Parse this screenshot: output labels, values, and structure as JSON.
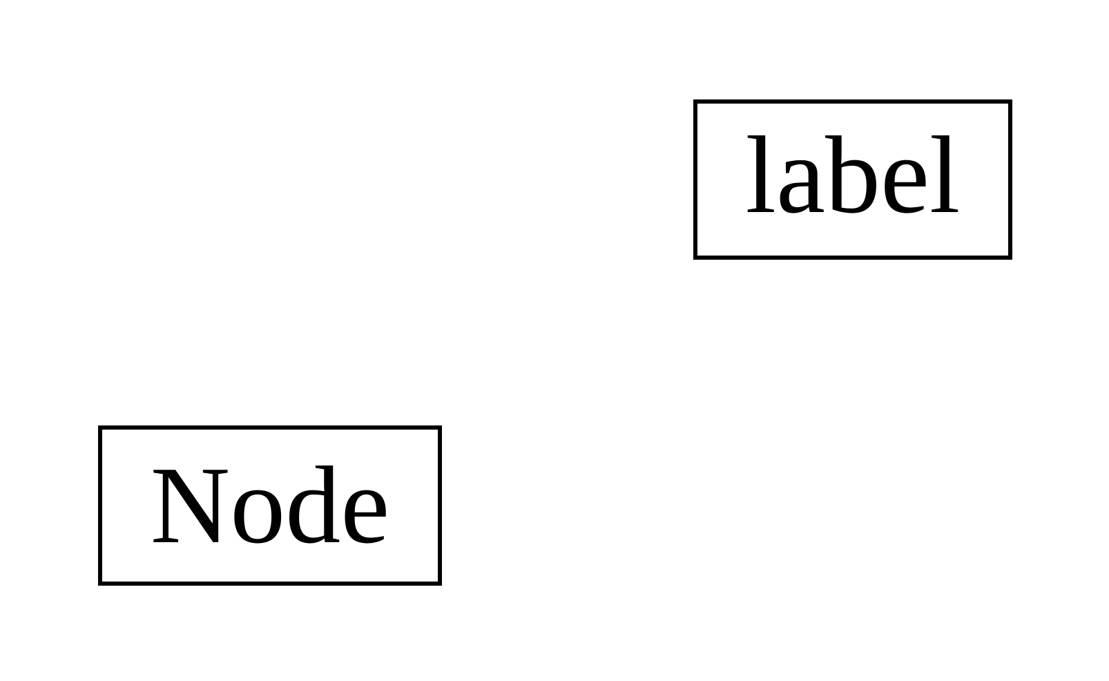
{
  "diagram": {
    "nodes": [
      {
        "id": "label",
        "text": "label"
      },
      {
        "id": "node",
        "text": "Node"
      }
    ]
  },
  "colors": {
    "background": "#ffffff",
    "stroke": "#000000",
    "text": "#000000"
  }
}
